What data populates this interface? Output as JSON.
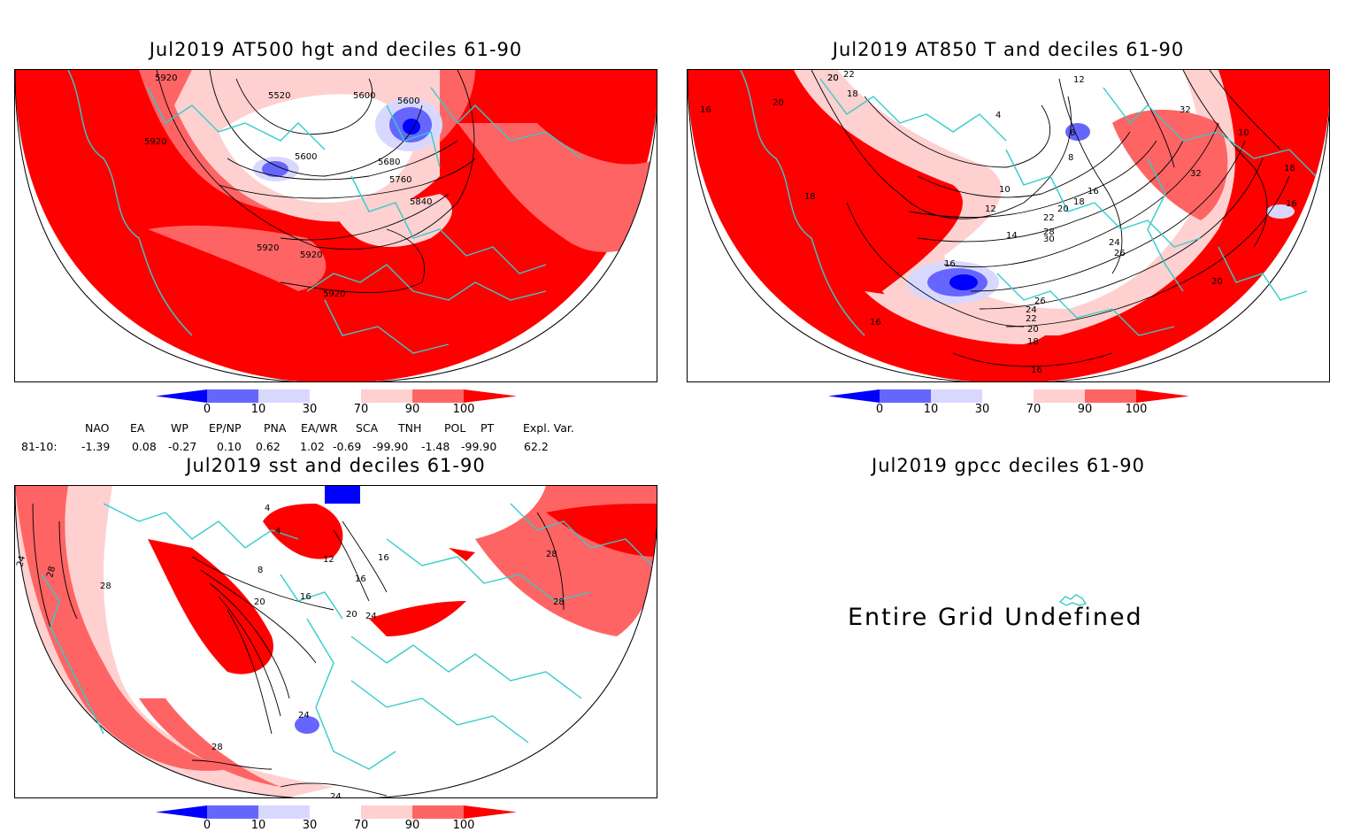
{
  "panels": [
    {
      "title": "Jul2019 AT500 hgt and deciles 61-90",
      "contour_labels": [
        "5920",
        "5520",
        "5600",
        "5600",
        "5920",
        "5600",
        "5680",
        "5760",
        "5840",
        "5920",
        "5920",
        "5920"
      ]
    },
    {
      "title": "Jul2019 AT850 T and deciles 61-90",
      "contour_labels": [
        "20",
        "22",
        "20",
        "18",
        "16",
        "20",
        "12",
        "4",
        "6",
        "8",
        "10",
        "12",
        "14",
        "16",
        "18",
        "20",
        "22",
        "24",
        "26",
        "28",
        "30",
        "32",
        "32",
        "26",
        "24",
        "22",
        "20",
        "18",
        "16",
        "16",
        "18",
        "10",
        "16",
        "20",
        "16",
        "18"
      ]
    },
    {
      "title": "Jul2019 sst and deciles 61-90",
      "contour_labels": [
        "24",
        "28",
        "28",
        "4",
        "4",
        "8",
        "12",
        "16",
        "20",
        "16",
        "16",
        "20",
        "24",
        "28",
        "28",
        "24",
        "28",
        "24"
      ]
    },
    {
      "title": "Jul2019 gpcc deciles 61-90",
      "undefined_text": "Entire Grid Undefined"
    }
  ],
  "colorbar": {
    "ticks": [
      "0",
      "10",
      "30",
      "70",
      "90",
      "100"
    ],
    "colors": [
      "#0000ff",
      "#6666ff",
      "#d8d8ff",
      "#ffffff",
      "#ffd0d0",
      "#ff6464",
      "#ff0000"
    ]
  },
  "indices": {
    "headers": [
      "NAO",
      "EA",
      "WP",
      "EP/NP",
      "PNA",
      "EA/WR",
      "SCA",
      "TNH",
      "POL",
      "PT",
      "Expl. Var."
    ],
    "row_label": "81-10:",
    "values": [
      "-1.39",
      "0.08",
      "-0.27",
      "0.10",
      "0.62",
      "1.02",
      "-0.69",
      "-99.90",
      "-1.48",
      "-99.90",
      "62.2"
    ]
  },
  "style": {
    "map_red": "#ff0000",
    "map_light_red": "#ff6464",
    "map_pink": "#ffd0d0",
    "map_blue": "#0000ff",
    "map_light_blue": "#6666ff",
    "coast": "#33cccc"
  }
}
